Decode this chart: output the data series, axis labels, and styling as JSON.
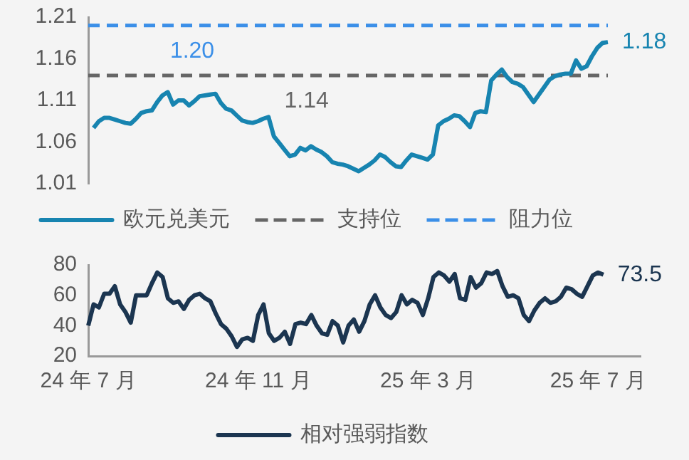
{
  "chart_data": [
    {
      "type": "line",
      "categories": [
        null,
        null,
        null,
        null,
        null,
        null,
        null,
        null,
        null,
        null,
        null,
        null,
        null,
        null,
        null,
        null,
        null,
        null,
        null,
        null,
        null,
        null,
        null,
        null,
        null,
        null,
        null,
        null,
        null,
        null,
        null,
        null,
        null,
        null,
        null,
        null,
        null,
        null,
        null,
        null,
        null,
        null,
        null,
        null,
        null,
        null,
        null,
        null,
        null,
        null,
        null,
        null,
        null,
        null,
        null,
        null,
        null,
        null,
        null,
        null,
        null,
        null,
        null,
        null,
        null,
        null,
        null,
        null,
        null,
        null,
        null,
        null,
        null,
        null,
        null,
        null,
        null,
        null,
        null,
        null,
        null,
        null,
        null,
        null,
        null,
        null,
        null,
        null,
        null,
        null,
        null,
        null,
        null,
        null,
        null,
        null,
        null,
        null,
        null
      ],
      "series": [
        {
          "name": "欧元兑美元",
          "color": "#1784b0",
          "values": [
            null,
            1.077,
            1.085,
            1.089,
            1.089,
            1.087,
            1.085,
            1.083,
            1.082,
            1.088,
            1.095,
            1.097,
            1.098,
            1.108,
            1.116,
            1.12,
            1.105,
            1.11,
            1.11,
            1.104,
            1.109,
            1.115,
            1.116,
            1.117,
            1.118,
            1.107,
            1.1,
            1.098,
            1.092,
            1.086,
            1.084,
            1.083,
            1.085,
            1.088,
            1.09,
            1.067,
            1.059,
            1.051,
            1.043,
            1.045,
            1.053,
            1.05,
            1.055,
            1.051,
            1.048,
            1.043,
            1.036,
            1.034,
            1.033,
            1.031,
            1.028,
            1.025,
            1.029,
            1.033,
            1.038,
            1.045,
            1.042,
            1.036,
            1.031,
            1.03,
            1.038,
            1.045,
            1.043,
            1.041,
            1.039,
            1.045,
            1.08,
            1.085,
            1.088,
            1.092,
            1.091,
            1.085,
            1.078,
            1.095,
            1.097,
            1.096,
            1.134,
            1.141,
            1.147,
            1.138,
            1.132,
            1.13,
            1.126,
            1.117,
            1.108,
            1.117,
            1.126,
            1.135,
            1.139,
            1.141,
            1.142,
            1.142,
            1.158,
            1.148,
            1.151,
            1.163,
            1.173,
            1.179,
            1.18
          ]
        }
      ],
      "ref_lines": [
        {
          "axis": "y",
          "value": 1.14,
          "label": "支持位",
          "color": "#666666",
          "line_style": "dashed"
        },
        {
          "axis": "y",
          "value": 1.2,
          "label": "阻力位",
          "color": "#3b8fe8",
          "line_style": "dashed"
        }
      ],
      "annotations": [
        "1.20",
        "1.14",
        "1.18"
      ],
      "ylim": [
        1.01,
        1.21
      ],
      "yticks": [
        1.01,
        1.06,
        1.11,
        1.16,
        1.21
      ],
      "tick_labels": "y",
      "grid": false,
      "legend": "bottom",
      "line_style": "solid",
      "marker": "none"
    },
    {
      "type": "line",
      "categories": [
        "24 年 7 月",
        null,
        null,
        null,
        null,
        null,
        null,
        null,
        null,
        null,
        null,
        null,
        null,
        null,
        null,
        null,
        null,
        null,
        null,
        null,
        null,
        null,
        null,
        null,
        null,
        null,
        null,
        null,
        null,
        null,
        null,
        null,
        "24 年 11 月",
        null,
        null,
        null,
        null,
        null,
        null,
        null,
        null,
        null,
        null,
        null,
        null,
        null,
        null,
        null,
        null,
        null,
        null,
        null,
        null,
        null,
        null,
        null,
        null,
        null,
        null,
        null,
        null,
        null,
        null,
        null,
        "25 年 3 月",
        null,
        null,
        null,
        null,
        null,
        null,
        null,
        null,
        null,
        null,
        null,
        null,
        null,
        null,
        null,
        null,
        null,
        null,
        null,
        null,
        null,
        null,
        null,
        null,
        null,
        null,
        null,
        null,
        null,
        null,
        null,
        "25 年 7 月",
        null,
        null,
        null,
        null,
        null,
        null,
        null,
        null
      ],
      "series": [
        {
          "name": "相对强弱指数",
          "color": "#1b3550",
          "values": [
            40,
            54,
            52,
            61,
            61,
            66,
            54,
            49,
            42,
            60,
            60,
            60,
            68,
            75,
            72,
            58,
            55,
            56,
            51,
            57,
            60,
            61,
            58,
            56,
            48,
            41,
            38,
            33,
            26,
            31,
            32,
            30,
            47,
            54,
            35,
            30,
            32,
            36,
            28,
            41,
            42,
            41,
            47,
            40,
            35,
            34,
            43,
            40,
            29,
            40,
            44,
            36,
            43,
            54,
            60,
            52,
            47,
            45,
            49,
            60,
            54,
            57,
            55,
            47,
            58,
            72,
            75,
            73,
            69,
            74,
            58,
            57,
            72,
            65,
            68,
            75,
            74,
            76,
            66,
            59,
            60,
            58,
            47,
            43,
            50,
            55,
            58,
            55,
            56,
            59,
            65,
            64,
            61,
            59,
            66,
            73,
            75,
            73.5,
            null,
            null,
            null,
            null,
            null,
            null,
            null
          ]
        }
      ],
      "annotations": [
        "73.5"
      ],
      "ylim": [
        20,
        80
      ],
      "yticks": [
        20,
        40,
        60,
        80
      ],
      "grid": false,
      "legend": "bottom",
      "line_style": "solid",
      "marker": "none"
    }
  ]
}
